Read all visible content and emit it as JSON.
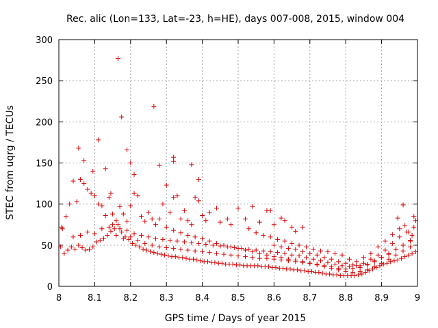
{
  "chart_data": {
    "type": "scatter",
    "title": "Rec. alic (Lon=133, Lat=-23, h=HE), days 007-008, 2015, window 004",
    "xlabel": "GPS time / Days of year 2015",
    "ylabel": "STEC from uqrg / TECUs",
    "xlim": [
      8,
      9
    ],
    "ylim": [
      0,
      300
    ],
    "xticks": [
      "8",
      "8.1",
      "8.2",
      "8.3",
      "8.4",
      "8.5",
      "8.6",
      "8.7",
      "8.8",
      "8.9",
      "9"
    ],
    "yticks": [
      "0",
      "50",
      "100",
      "150",
      "200",
      "250",
      "300"
    ],
    "grid": true,
    "marker": "+",
    "color": "#d40000",
    "points": [
      [
        8.008,
        72
      ],
      [
        8.01,
        70
      ],
      [
        8.02,
        85
      ],
      [
        8.03,
        100
      ],
      [
        8.04,
        128
      ],
      [
        8.05,
        103
      ],
      [
        8.06,
        130
      ],
      [
        8.07,
        125
      ],
      [
        8.08,
        118
      ],
      [
        8.09,
        113
      ],
      [
        8.095,
        140
      ],
      [
        8.1,
        110
      ],
      [
        8.11,
        100
      ],
      [
        8.12,
        98
      ],
      [
        8.13,
        86
      ],
      [
        8.14,
        108
      ],
      [
        8.145,
        113
      ],
      [
        8.15,
        88
      ],
      [
        8.16,
        80
      ],
      [
        8.17,
        97
      ],
      [
        8.18,
        88
      ],
      [
        8.19,
        79
      ],
      [
        8.2,
        98
      ],
      [
        8.21,
        113
      ],
      [
        8.22,
        110
      ],
      [
        8.23,
        85
      ],
      [
        8.24,
        79
      ],
      [
        8.25,
        90
      ],
      [
        8.26,
        82
      ],
      [
        8.27,
        75
      ],
      [
        8.28,
        82
      ],
      [
        8.29,
        100
      ],
      [
        8.3,
        123
      ],
      [
        8.31,
        90
      ],
      [
        8.32,
        108
      ],
      [
        8.33,
        110
      ],
      [
        8.34,
        82
      ],
      [
        8.35,
        92
      ],
      [
        8.36,
        80
      ],
      [
        8.37,
        75
      ],
      [
        8.38,
        108
      ],
      [
        8.39,
        104
      ],
      [
        8.4,
        86
      ],
      [
        8.41,
        80
      ],
      [
        8.42,
        90
      ],
      [
        8.44,
        95
      ],
      [
        8.45,
        78
      ],
      [
        8.47,
        82
      ],
      [
        8.48,
        75
      ],
      [
        8.5,
        95
      ],
      [
        8.52,
        82
      ],
      [
        8.54,
        97
      ],
      [
        8.56,
        78
      ],
      [
        8.58,
        92
      ],
      [
        8.59,
        92
      ],
      [
        8.6,
        75
      ],
      [
        8.62,
        83
      ],
      [
        8.63,
        80
      ],
      [
        8.65,
        72
      ],
      [
        8.66,
        67
      ],
      [
        8.68,
        72
      ],
      [
        8.165,
        277
      ],
      [
        8.175,
        206
      ],
      [
        8.265,
        219
      ],
      [
        8.055,
        168
      ],
      [
        8.11,
        178
      ],
      [
        8.19,
        166
      ],
      [
        8.2,
        150
      ],
      [
        8.21,
        136
      ],
      [
        8.13,
        143
      ],
      [
        8.07,
        153
      ],
      [
        8.28,
        147
      ],
      [
        8.32,
        157
      ],
      [
        8.32,
        152
      ],
      [
        8.37,
        148
      ],
      [
        8.39,
        130
      ],
      [
        8.005,
        48
      ],
      [
        8.015,
        40
      ],
      [
        8.025,
        44
      ],
      [
        8.035,
        48
      ],
      [
        8.045,
        45
      ],
      [
        8.055,
        50
      ],
      [
        8.065,
        47
      ],
      [
        8.075,
        44
      ],
      [
        8.085,
        45
      ],
      [
        8.095,
        48
      ],
      [
        8.105,
        54
      ],
      [
        8.115,
        56
      ],
      [
        8.125,
        58
      ],
      [
        8.135,
        62
      ],
      [
        8.145,
        67
      ],
      [
        8.155,
        70
      ],
      [
        8.165,
        75
      ],
      [
        8.175,
        66
      ],
      [
        8.185,
        60
      ],
      [
        8.195,
        57
      ],
      [
        8.205,
        52
      ],
      [
        8.215,
        50
      ],
      [
        8.225,
        48
      ],
      [
        8.235,
        45
      ],
      [
        8.245,
        44
      ],
      [
        8.255,
        42
      ],
      [
        8.265,
        41
      ],
      [
        8.275,
        40
      ],
      [
        8.285,
        39
      ],
      [
        8.295,
        38
      ],
      [
        8.305,
        37
      ],
      [
        8.315,
        36
      ],
      [
        8.325,
        36
      ],
      [
        8.335,
        35
      ],
      [
        8.345,
        35
      ],
      [
        8.355,
        34
      ],
      [
        8.365,
        33
      ],
      [
        8.375,
        33
      ],
      [
        8.385,
        32
      ],
      [
        8.395,
        31
      ],
      [
        8.405,
        30
      ],
      [
        8.415,
        30
      ],
      [
        8.425,
        29
      ],
      [
        8.435,
        29
      ],
      [
        8.445,
        28
      ],
      [
        8.455,
        28
      ],
      [
        8.465,
        27
      ],
      [
        8.475,
        27
      ],
      [
        8.485,
        27
      ],
      [
        8.495,
        26
      ],
      [
        8.505,
        26
      ],
      [
        8.515,
        25
      ],
      [
        8.525,
        25
      ],
      [
        8.535,
        25
      ],
      [
        8.545,
        25
      ],
      [
        8.555,
        25
      ],
      [
        8.565,
        24
      ],
      [
        8.575,
        24
      ],
      [
        8.585,
        24
      ],
      [
        8.595,
        23
      ],
      [
        8.605,
        23
      ],
      [
        8.615,
        22
      ],
      [
        8.625,
        22
      ],
      [
        8.635,
        21
      ],
      [
        8.645,
        21
      ],
      [
        8.655,
        20
      ],
      [
        8.665,
        20
      ],
      [
        8.675,
        19
      ],
      [
        8.685,
        19
      ],
      [
        8.695,
        18
      ],
      [
        8.705,
        18
      ],
      [
        8.715,
        17
      ],
      [
        8.725,
        17
      ],
      [
        8.735,
        16
      ],
      [
        8.745,
        15
      ],
      [
        8.755,
        15
      ],
      [
        8.765,
        14
      ],
      [
        8.775,
        14
      ],
      [
        8.785,
        13
      ],
      [
        8.795,
        13
      ],
      [
        8.805,
        13
      ],
      [
        8.815,
        13
      ],
      [
        8.825,
        13
      ],
      [
        8.835,
        14
      ],
      [
        8.845,
        15
      ],
      [
        8.855,
        17
      ],
      [
        8.865,
        19
      ],
      [
        8.875,
        21
      ],
      [
        8.885,
        23
      ],
      [
        8.895,
        25
      ],
      [
        8.905,
        27
      ],
      [
        8.915,
        28
      ],
      [
        8.925,
        30
      ],
      [
        8.935,
        31
      ],
      [
        8.945,
        32
      ],
      [
        8.955,
        34
      ],
      [
        8.965,
        36
      ],
      [
        8.975,
        38
      ],
      [
        8.985,
        40
      ],
      [
        8.995,
        42
      ],
      [
        8.04,
        60
      ],
      [
        8.06,
        62
      ],
      [
        8.08,
        66
      ],
      [
        8.1,
        64
      ],
      [
        8.12,
        70
      ],
      [
        8.14,
        72
      ],
      [
        8.16,
        62
      ],
      [
        8.18,
        58
      ],
      [
        8.2,
        60
      ],
      [
        8.22,
        56
      ],
      [
        8.24,
        52
      ],
      [
        8.26,
        50
      ],
      [
        8.28,
        48
      ],
      [
        8.3,
        47
      ],
      [
        8.32,
        46
      ],
      [
        8.34,
        45
      ],
      [
        8.36,
        44
      ],
      [
        8.38,
        43
      ],
      [
        8.4,
        42
      ],
      [
        8.42,
        41
      ],
      [
        8.44,
        40
      ],
      [
        8.46,
        39
      ],
      [
        8.48,
        38
      ],
      [
        8.5,
        37
      ],
      [
        8.52,
        36
      ],
      [
        8.54,
        35
      ],
      [
        8.56,
        34
      ],
      [
        8.58,
        34
      ],
      [
        8.6,
        33
      ],
      [
        8.62,
        32
      ],
      [
        8.64,
        31
      ],
      [
        8.66,
        30
      ],
      [
        8.68,
        29
      ],
      [
        8.7,
        28
      ],
      [
        8.72,
        27
      ],
      [
        8.74,
        25
      ],
      [
        8.76,
        24
      ],
      [
        8.78,
        22
      ],
      [
        8.8,
        21
      ],
      [
        8.82,
        22
      ],
      [
        8.84,
        23
      ],
      [
        8.86,
        26
      ],
      [
        8.88,
        30
      ],
      [
        8.9,
        35
      ],
      [
        8.92,
        40
      ],
      [
        8.94,
        45
      ],
      [
        8.96,
        50
      ],
      [
        8.98,
        56
      ],
      [
        8.15,
        75
      ],
      [
        8.17,
        70
      ],
      [
        8.19,
        68
      ],
      [
        8.21,
        64
      ],
      [
        8.23,
        62
      ],
      [
        8.25,
        60
      ],
      [
        8.27,
        58
      ],
      [
        8.29,
        57
      ],
      [
        8.31,
        56
      ],
      [
        8.33,
        55
      ],
      [
        8.35,
        54
      ],
      [
        8.37,
        53
      ],
      [
        8.39,
        52
      ],
      [
        8.41,
        51
      ],
      [
        8.43,
        50
      ],
      [
        8.45,
        49
      ],
      [
        8.47,
        48
      ],
      [
        8.49,
        47
      ],
      [
        8.51,
        46
      ],
      [
        8.53,
        45
      ],
      [
        8.55,
        44
      ],
      [
        8.57,
        43
      ],
      [
        8.59,
        42
      ],
      [
        8.61,
        41
      ],
      [
        8.63,
        40
      ],
      [
        8.65,
        38
      ],
      [
        8.67,
        37
      ],
      [
        8.69,
        35
      ],
      [
        8.71,
        33
      ],
      [
        8.73,
        31
      ],
      [
        8.75,
        29
      ],
      [
        8.77,
        27
      ],
      [
        8.79,
        25
      ],
      [
        8.81,
        24
      ],
      [
        8.83,
        25
      ],
      [
        8.85,
        28
      ],
      [
        8.87,
        33
      ],
      [
        8.89,
        38
      ],
      [
        8.91,
        44
      ],
      [
        8.93,
        52
      ],
      [
        8.95,
        60
      ],
      [
        8.97,
        66
      ],
      [
        8.99,
        72
      ],
      [
        8.53,
        70
      ],
      [
        8.55,
        65
      ],
      [
        8.57,
        62
      ],
      [
        8.59,
        60
      ],
      [
        8.61,
        57
      ],
      [
        8.63,
        55
      ],
      [
        8.65,
        52
      ],
      [
        8.67,
        50
      ],
      [
        8.69,
        48
      ],
      [
        8.71,
        45
      ],
      [
        8.73,
        43
      ],
      [
        8.75,
        42
      ],
      [
        8.77,
        40
      ],
      [
        8.79,
        38
      ],
      [
        8.81,
        33
      ],
      [
        8.83,
        30
      ],
      [
        8.85,
        35
      ],
      [
        8.87,
        40
      ],
      [
        8.89,
        48
      ],
      [
        8.91,
        55
      ],
      [
        8.93,
        63
      ],
      [
        8.95,
        70
      ],
      [
        8.96,
        99
      ],
      [
        8.945,
        83
      ],
      [
        8.965,
        74
      ],
      [
        8.975,
        66
      ],
      [
        8.985,
        62
      ],
      [
        8.99,
        85
      ],
      [
        8.995,
        80
      ],
      [
        8.3,
        72
      ],
      [
        8.32,
        68
      ],
      [
        8.34,
        65
      ],
      [
        8.36,
        62
      ],
      [
        8.38,
        60
      ],
      [
        8.4,
        58
      ],
      [
        8.42,
        55
      ],
      [
        8.44,
        52
      ],
      [
        8.46,
        50
      ],
      [
        8.48,
        48
      ],
      [
        8.5,
        46
      ],
      [
        8.52,
        44
      ],
      [
        8.54,
        42
      ],
      [
        8.56,
        40
      ],
      [
        8.58,
        38
      ],
      [
        8.6,
        36
      ],
      [
        8.62,
        35
      ],
      [
        8.64,
        33
      ],
      [
        8.66,
        32
      ],
      [
        8.68,
        30
      ],
      [
        8.7,
        28
      ],
      [
        8.72,
        26
      ],
      [
        8.74,
        24
      ],
      [
        8.76,
        22
      ],
      [
        8.78,
        20
      ],
      [
        8.8,
        18
      ],
      [
        8.82,
        17
      ],
      [
        8.84,
        18
      ],
      [
        8.86,
        20
      ],
      [
        8.88,
        24
      ],
      [
        8.9,
        28
      ],
      [
        8.92,
        33
      ],
      [
        8.94,
        38
      ],
      [
        8.96,
        43
      ],
      [
        8.98,
        48
      ],
      [
        8.6,
        50
      ],
      [
        8.62,
        48
      ],
      [
        8.64,
        46
      ],
      [
        8.66,
        45
      ],
      [
        8.68,
        42
      ],
      [
        8.7,
        40
      ],
      [
        8.72,
        38
      ],
      [
        8.74,
        35
      ],
      [
        8.76,
        33
      ],
      [
        8.78,
        30
      ],
      [
        8.8,
        28
      ],
      [
        8.82,
        26
      ],
      [
        8.84,
        25
      ],
      [
        8.86,
        27
      ],
      [
        8.88,
        31
      ],
      [
        8.9,
        35
      ],
      [
        8.92,
        39
      ],
      [
        8.94,
        45
      ],
      [
        8.96,
        50
      ],
      [
        8.98,
        55
      ]
    ]
  }
}
